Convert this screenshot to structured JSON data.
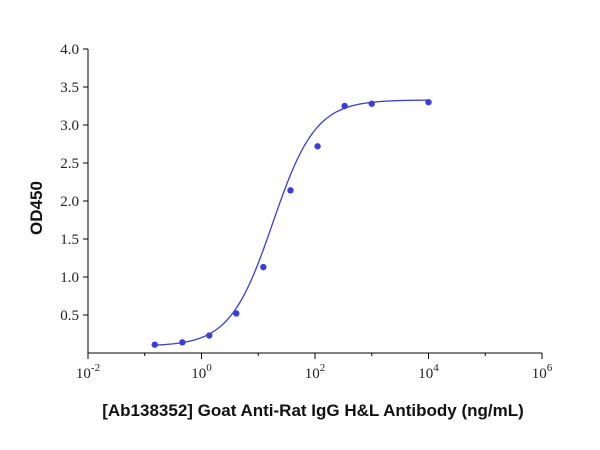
{
  "chart_data": {
    "type": "scatter",
    "xlabel": "[Ab138352] Goat Anti-Rat IgG H&L Antibody (ng/mL)",
    "ylabel": "OD450",
    "x_scale": "log10",
    "xlim": [
      0.01,
      1000000
    ],
    "ylim": [
      0,
      4.0
    ],
    "x_ticks": [
      0.01,
      1,
      100,
      10000,
      1000000
    ],
    "x_tick_labels": [
      {
        "base": "10",
        "exp": "-2"
      },
      {
        "base": "10",
        "exp": "0"
      },
      {
        "base": "10",
        "exp": "2"
      },
      {
        "base": "10",
        "exp": "4"
      },
      {
        "base": "10",
        "exp": "6"
      }
    ],
    "y_ticks": [
      0.5,
      1.0,
      1.5,
      2.0,
      2.5,
      3.0,
      3.5,
      4.0
    ],
    "y_tick_labels": [
      "0.5",
      "1.0",
      "1.5",
      "2.0",
      "2.5",
      "3.0",
      "3.5",
      "4.0"
    ],
    "grid": false,
    "color": "#3a3fd6",
    "points": [
      {
        "x": 0.15,
        "y": 0.11
      },
      {
        "x": 0.46,
        "y": 0.14
      },
      {
        "x": 1.37,
        "y": 0.23
      },
      {
        "x": 4.1,
        "y": 0.52
      },
      {
        "x": 12.3,
        "y": 1.13
      },
      {
        "x": 37,
        "y": 2.14
      },
      {
        "x": 111,
        "y": 2.72
      },
      {
        "x": 333,
        "y": 3.25
      },
      {
        "x": 1000,
        "y": 3.28
      },
      {
        "x": 10000,
        "y": 3.3
      }
    ],
    "fit": {
      "model": "4PL",
      "bottom": 0.09,
      "top": 3.33,
      "ec50": 18,
      "hill": 1.15
    }
  }
}
